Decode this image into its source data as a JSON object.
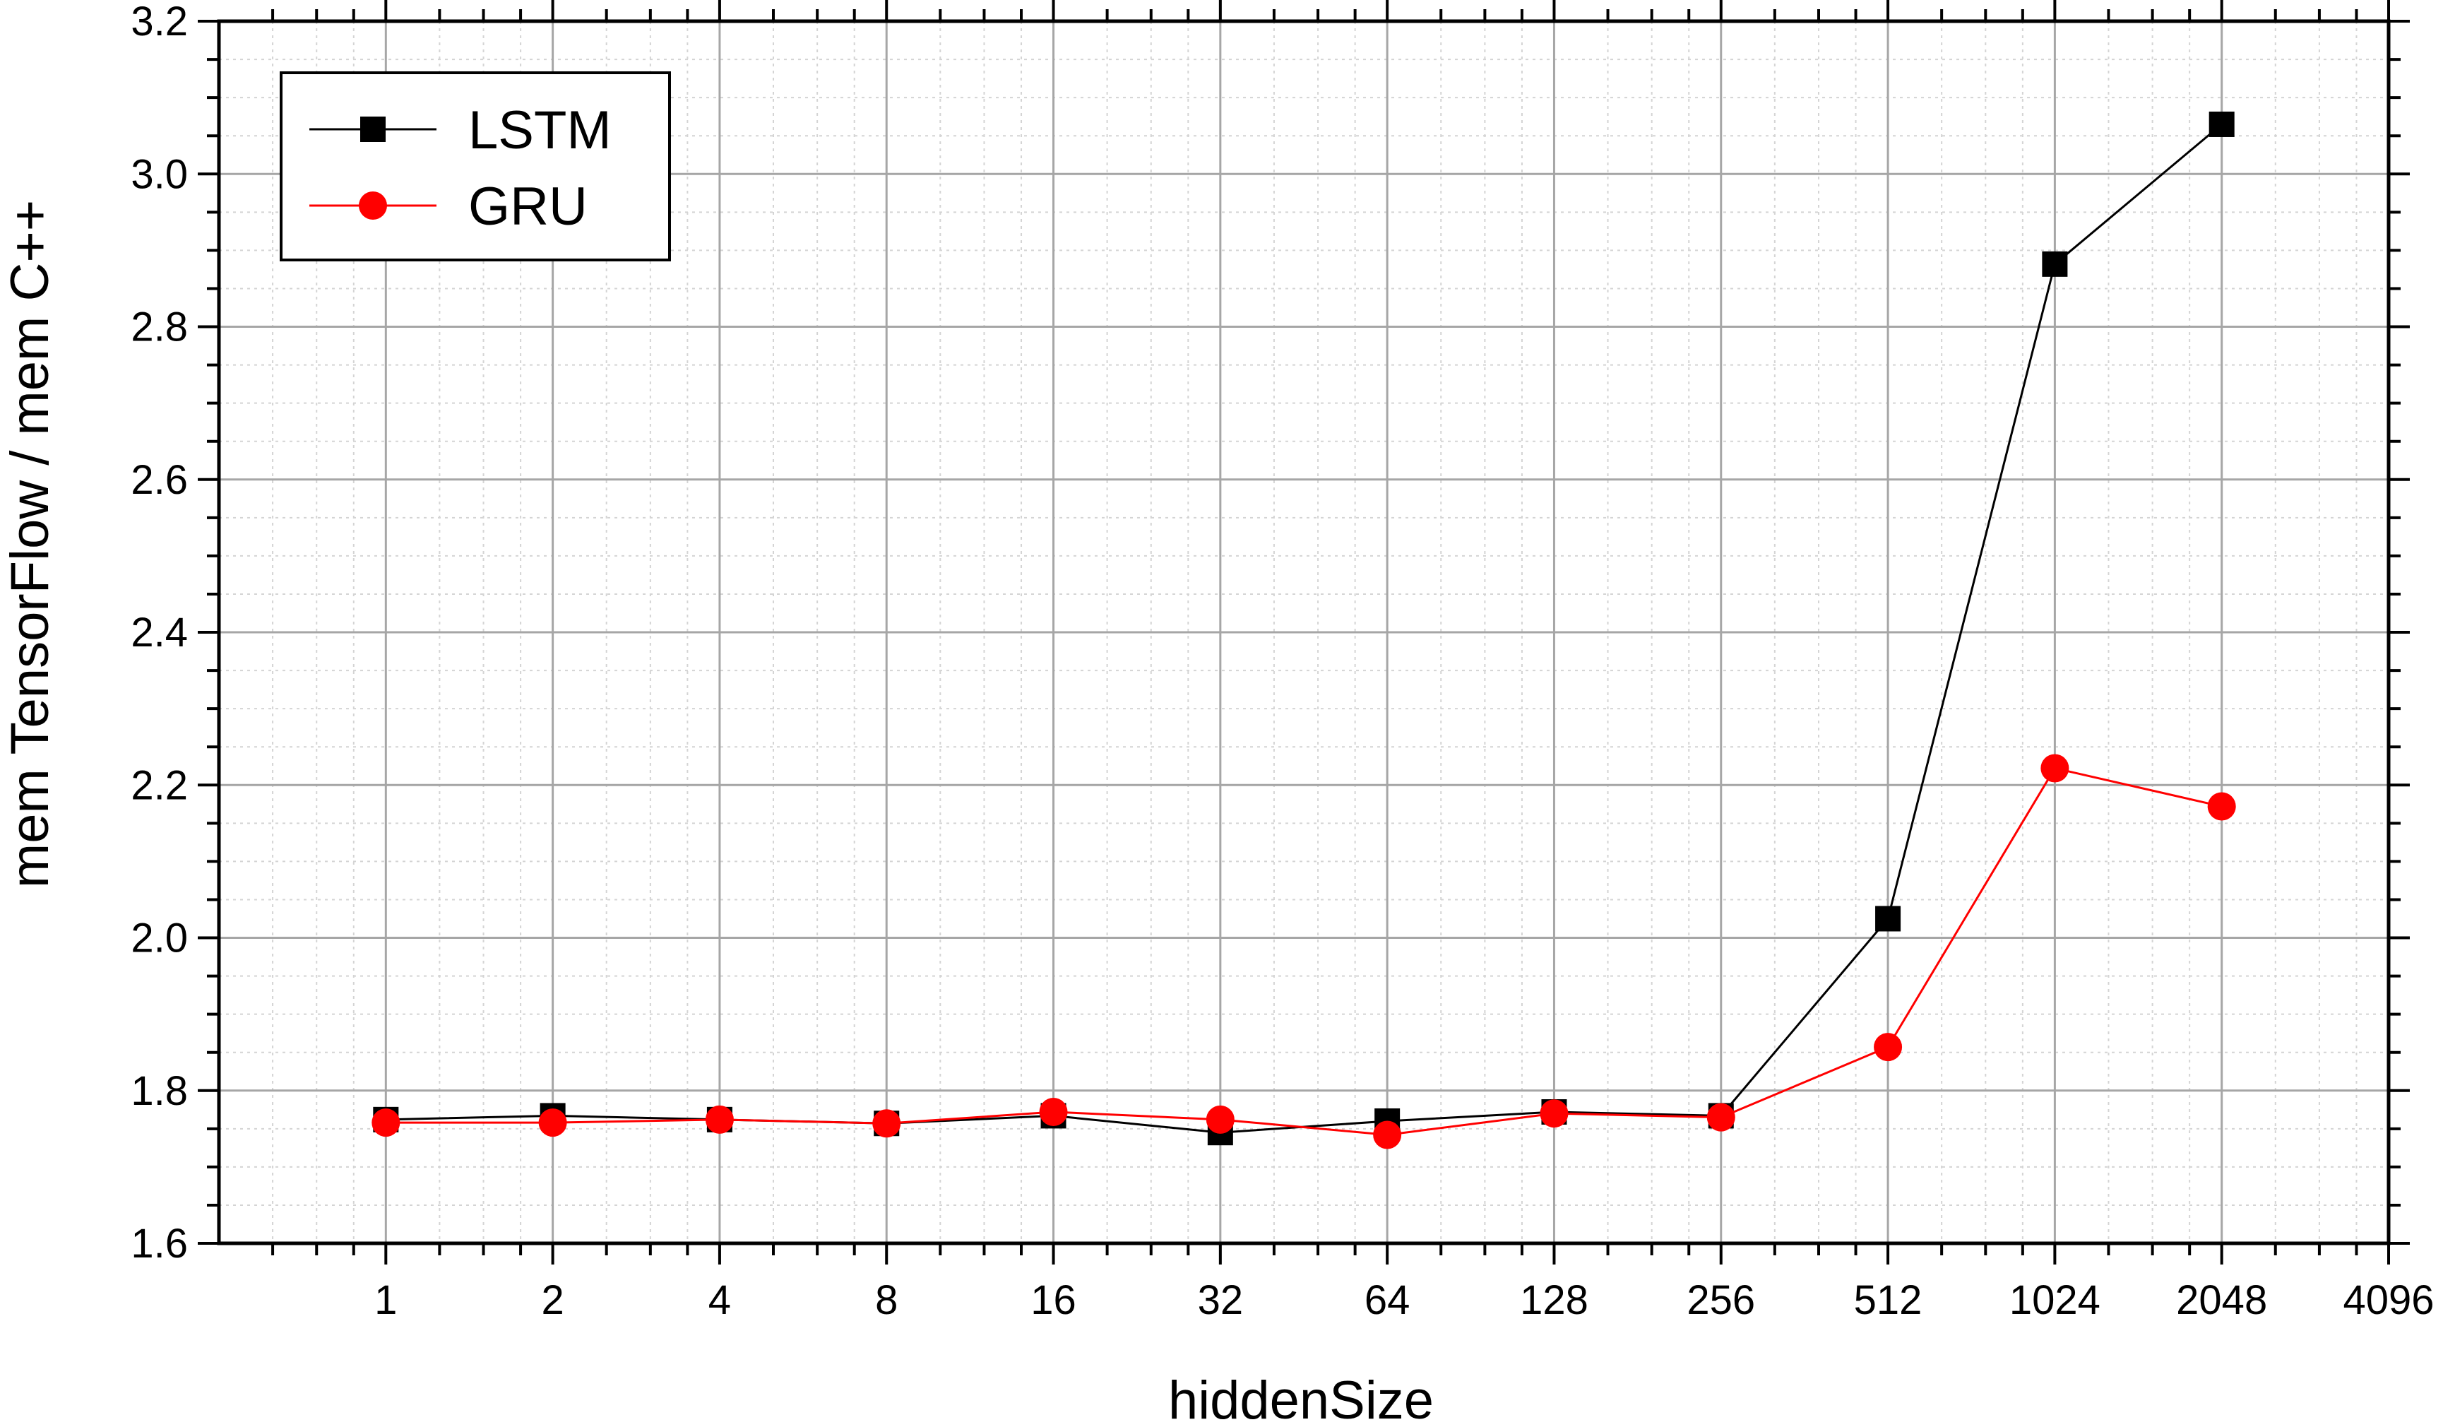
{
  "chart_data": {
    "type": "line",
    "xlabel": "hiddenSize",
    "ylabel": "mem TensorFlow / mem C++",
    "x_scale": "log2",
    "xlim": [
      0.5,
      4096
    ],
    "ylim": [
      1.6,
      3.2
    ],
    "x_ticks": [
      "1",
      "2",
      "4",
      "8",
      "16",
      "32",
      "64",
      "128",
      "256",
      "512",
      "1024",
      "2048",
      "4096"
    ],
    "y_ticks": [
      "1.6",
      "1.8",
      "2.0",
      "2.2",
      "2.4",
      "2.6",
      "2.8",
      "3.0",
      "3.2"
    ],
    "grid": true,
    "legend_position": "top-left",
    "x": [
      1,
      2,
      4,
      8,
      16,
      32,
      64,
      128,
      256,
      512,
      1024,
      2048
    ],
    "series": [
      {
        "name": "LSTM",
        "color": "#000000",
        "marker": "square",
        "values": [
          1.762,
          1.767,
          1.762,
          1.757,
          1.767,
          1.745,
          1.76,
          1.772,
          1.767,
          2.025,
          2.882,
          3.065
        ]
      },
      {
        "name": "GRU",
        "color": "#ff0000",
        "marker": "circle",
        "values": [
          1.758,
          1.758,
          1.762,
          1.757,
          1.772,
          1.762,
          1.742,
          1.77,
          1.765,
          1.857,
          2.222,
          2.172
        ]
      }
    ]
  }
}
